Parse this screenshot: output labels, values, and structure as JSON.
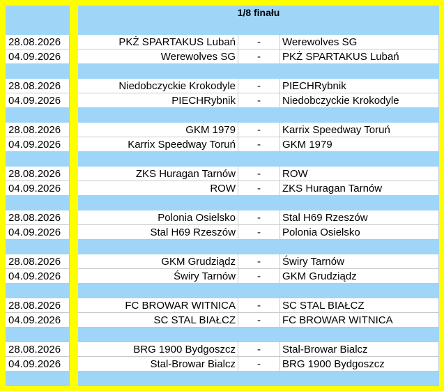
{
  "header": {
    "title": "1/8 finału"
  },
  "matches": [
    {
      "date": "28.08.2026",
      "home": "PKŻ SPARTAKUS Lubań",
      "separator": "-",
      "away": "Werewolves SG"
    },
    {
      "date": "04.09.2026",
      "home": "Werewolves SG",
      "separator": "-",
      "away": "PKŻ SPARTAKUS Lubań"
    },
    {
      "date": "28.08.2026",
      "home": "Niedobczyckie Krokodyle",
      "separator": "-",
      "away": "PIECHRybnik"
    },
    {
      "date": "04.09.2026",
      "home": "PIECHRybnik",
      "separator": "-",
      "away": "Niedobczyckie Krokodyle"
    },
    {
      "date": "28.08.2026",
      "home": "GKM 1979",
      "separator": "-",
      "away": "Karrix Speedway Toruń"
    },
    {
      "date": "04.09.2026",
      "home": "Karrix Speedway Toruń",
      "separator": "-",
      "away": "GKM 1979"
    },
    {
      "date": "28.08.2026",
      "home": "ZKS Huragan Tarnów",
      "separator": "-",
      "away": "ROW"
    },
    {
      "date": "04.09.2026",
      "home": "ROW",
      "separator": "-",
      "away": "ZKS Huragan Tarnów"
    },
    {
      "date": "28.08.2026",
      "home": "Polonia Osielsko",
      "separator": "-",
      "away": "Stal H69 Rzeszów"
    },
    {
      "date": "04.09.2026",
      "home": "Stal H69 Rzeszów",
      "separator": "-",
      "away": "Polonia Osielsko"
    },
    {
      "date": "28.08.2026",
      "home": "GKM Grudziądz",
      "separator": "-",
      "away": "Świry Tarnów"
    },
    {
      "date": "04.09.2026",
      "home": "Świry Tarnów",
      "separator": "-",
      "away": "GKM Grudziądz"
    },
    {
      "date": "28.08.2026",
      "home": "FC BROWAR WITNICA",
      "separator": "-",
      "away": "SC STAL BIAŁCZ"
    },
    {
      "date": "04.09.2026",
      "home": "SC STAL BIAŁCZ",
      "separator": "-",
      "away": "FC BROWAR WITNICA"
    },
    {
      "date": "28.08.2026",
      "home": "BRG 1900 Bydgoszcz",
      "separator": "-",
      "away": "Stal-Browar Bialcz"
    },
    {
      "date": "04.09.2026",
      "home": "Stal-Browar Bialcz",
      "separator": "-",
      "away": "BRG 1900 Bydgoszcz"
    }
  ]
}
